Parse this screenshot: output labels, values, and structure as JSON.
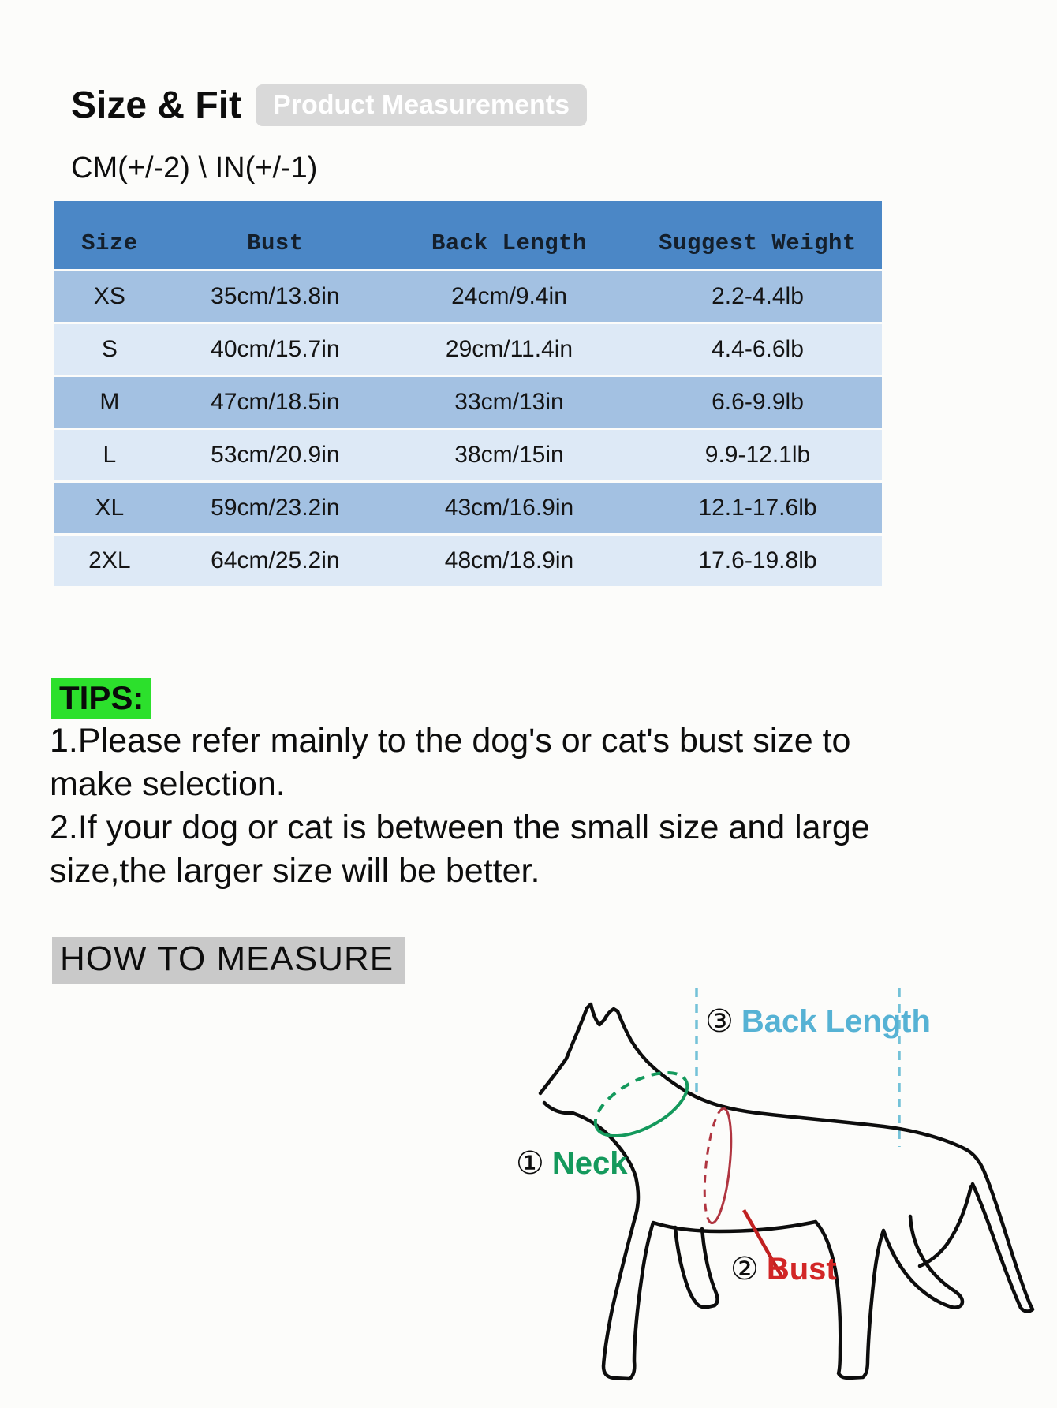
{
  "page": {
    "title": "Size & Fit",
    "badge": "Product Measurements",
    "unit_note": "CM(+/-2) \\ IN(+/-1)"
  },
  "size_table": {
    "headers": [
      "Size",
      "Bust",
      "Back Length",
      "Suggest Weight"
    ],
    "rows": [
      [
        "XS",
        "35cm/13.8in",
        "24cm/9.4in",
        "2.2-4.4lb"
      ],
      [
        "S",
        "40cm/15.7in",
        "29cm/11.4in",
        "4.4-6.6lb"
      ],
      [
        "M",
        "47cm/18.5in",
        "33cm/13in",
        "6.6-9.9lb"
      ],
      [
        "L",
        "53cm/20.9in",
        "38cm/15in",
        "9.9-12.1lb"
      ],
      [
        "XL",
        "59cm/23.2in",
        "43cm/16.9in",
        "12.1-17.6lb"
      ],
      [
        "2XL",
        "64cm/25.2in",
        "48cm/18.9in",
        "17.6-19.8lb"
      ]
    ]
  },
  "tips": {
    "label": "TIPS:",
    "items": [
      "1.Please refer mainly to the dog's or cat's  bust size to make selection.",
      "2.If your dog or cat is between the small size and large size,the larger size will be better."
    ]
  },
  "how_to_measure": {
    "heading": "HOW TO MEASURE",
    "back_length_num": "③",
    "back_length_label": "Back Length",
    "neck_num": "①",
    "neck_label": "Neck",
    "bust_num": "②",
    "bust_label": "Bust"
  },
  "colors": {
    "table_header_bg": "#4b87c6",
    "row_odd_bg": "#a3c1e2",
    "row_even_bg": "#dde9f6",
    "tips_highlight": "#2ce02c",
    "htm_highlight": "#c9c9c9",
    "badge_bg": "#d9d9d9",
    "back_length_accent": "#56b2d4",
    "neck_accent": "#14995c",
    "bust_accent": "#d22626"
  }
}
